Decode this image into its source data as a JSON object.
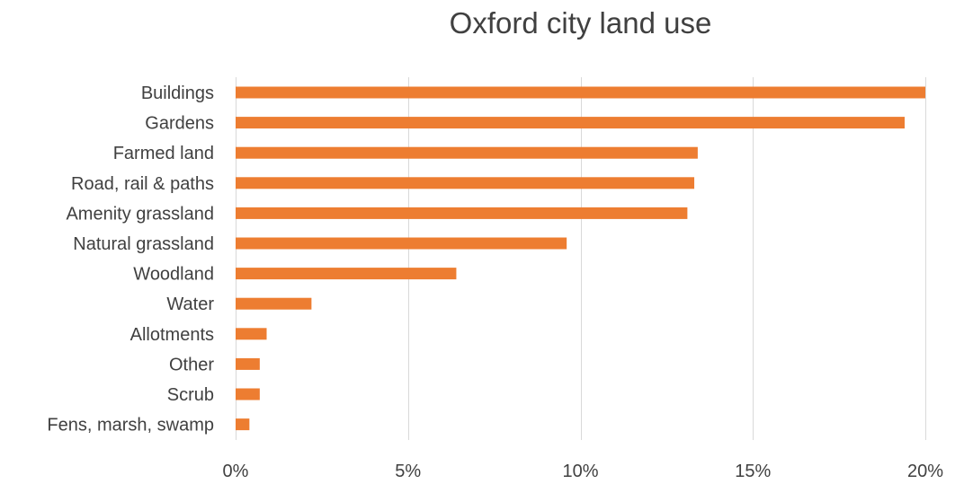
{
  "chart_data": {
    "type": "bar",
    "orientation": "horizontal",
    "title": "Oxford city land use",
    "xlabel": "",
    "ylabel": "",
    "categories": [
      "Buildings",
      "Gardens",
      "Farmed land",
      "Road, rail & paths",
      "Amenity grassland",
      "Natural grassland",
      "Woodland",
      "Water",
      "Allotments",
      "Other",
      "Scrub",
      "Fens, marsh, swamp"
    ],
    "values": [
      20.0,
      19.4,
      13.4,
      13.3,
      13.1,
      9.6,
      6.4,
      2.2,
      0.9,
      0.7,
      0.7,
      0.4
    ],
    "xlim": [
      0,
      20
    ],
    "xticks": [
      0,
      5,
      10,
      15,
      20
    ],
    "xtick_labels": [
      "0%",
      "5%",
      "10%",
      "15%",
      "20%"
    ],
    "grid": "vertical",
    "legend": "none",
    "bar_color": "#ED7D31",
    "gridline_color": "#d9d9d9",
    "text_color": "#404040"
  }
}
